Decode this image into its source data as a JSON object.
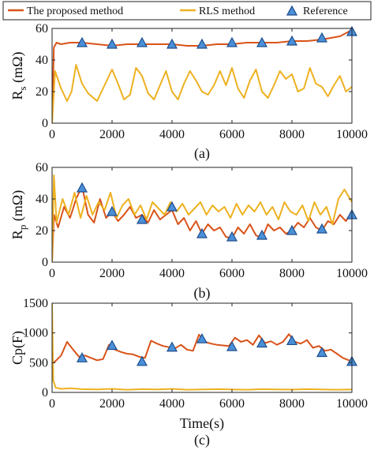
{
  "legend": {
    "placement": "top",
    "entries": [
      {
        "label": "The proposed method",
        "color": "#d95319",
        "marker": "line"
      },
      {
        "label": "RLS method",
        "color": "#edb120",
        "marker": "line"
      },
      {
        "label": "Reference",
        "color": "#4a90d9",
        "marker": "triangle"
      }
    ]
  },
  "chart_data": [
    {
      "type": "line",
      "caption": "(a)",
      "ylabel_main": "R",
      "ylabel_sub": "s",
      "ylabel_unit": " (mΩ)",
      "xlabel": "",
      "xlim": [
        0,
        10000
      ],
      "ylim": [
        0,
        60
      ],
      "xticks": [
        0,
        2000,
        4000,
        6000,
        8000,
        10000
      ],
      "yticks": [
        0,
        20,
        40,
        60
      ],
      "grid": false,
      "series": [
        {
          "name": "The proposed method",
          "color": "#d95319",
          "x": [
            0,
            60,
            150,
            300,
            600,
            1000,
            1500,
            2000,
            2500,
            3000,
            3500,
            4000,
            4500,
            5000,
            5500,
            6000,
            6500,
            7000,
            7500,
            8000,
            8500,
            9000,
            9300,
            9600,
            9800,
            10000
          ],
          "y": [
            0,
            48,
            51,
            50,
            51,
            51,
            50,
            49,
            50,
            50,
            50,
            50,
            49,
            49,
            50,
            50,
            51,
            51,
            51,
            52,
            52,
            53,
            54,
            55,
            57,
            59
          ]
        },
        {
          "name": "RLS method",
          "color": "#edb120",
          "x": [
            0,
            100,
            300,
            500,
            650,
            800,
            1000,
            1200,
            1500,
            1700,
            2000,
            2200,
            2400,
            2600,
            2800,
            3000,
            3200,
            3400,
            3600,
            3800,
            4000,
            4200,
            4400,
            4600,
            4800,
            5000,
            5200,
            5400,
            5600,
            5800,
            6000,
            6200,
            6400,
            6600,
            6800,
            7000,
            7200,
            7400,
            7600,
            7800,
            8000,
            8200,
            8400,
            8600,
            8800,
            9000,
            9200,
            9400,
            9600,
            9800,
            10000
          ],
          "y": [
            0,
            33,
            22,
            14,
            20,
            37,
            25,
            19,
            14,
            22,
            34,
            25,
            15,
            18,
            35,
            30,
            19,
            15,
            24,
            33,
            20,
            15,
            25,
            33,
            27,
            20,
            18,
            24,
            33,
            24,
            35,
            22,
            16,
            27,
            34,
            20,
            16,
            24,
            33,
            28,
            31,
            20,
            22,
            35,
            25,
            23,
            17,
            24,
            30,
            20,
            23
          ]
        },
        {
          "name": "Reference",
          "color": "#4a90d9",
          "marker": "triangle",
          "x": [
            1000,
            2000,
            3000,
            4000,
            5000,
            6000,
            7000,
            8000,
            9000,
            10000
          ],
          "y": [
            51,
            50,
            51,
            50,
            50,
            51,
            51,
            52,
            54,
            58
          ]
        }
      ]
    },
    {
      "type": "line",
      "caption": "(b)",
      "ylabel_main": "R",
      "ylabel_sub": "p",
      "ylabel_unit": " (mΩ)",
      "xlabel": "",
      "xlim": [
        0,
        10000
      ],
      "ylim": [
        0,
        60
      ],
      "xticks": [
        0,
        2000,
        4000,
        6000,
        8000,
        10000
      ],
      "yticks": [
        0,
        20,
        40,
        60
      ],
      "grid": false,
      "series": [
        {
          "name": "The proposed method",
          "color": "#d95319",
          "x": [
            0,
            60,
            200,
            400,
            600,
            800,
            1000,
            1200,
            1400,
            1600,
            1800,
            2000,
            2200,
            2400,
            2600,
            2800,
            3000,
            3200,
            3400,
            3600,
            3800,
            4000,
            4200,
            4400,
            4600,
            4800,
            5000,
            5200,
            5400,
            5600,
            5800,
            6000,
            6200,
            6400,
            6600,
            6800,
            7000,
            7200,
            7400,
            7600,
            7800,
            8000,
            8200,
            8400,
            8600,
            8800,
            9000,
            9200,
            9400,
            9600,
            9800,
            10000
          ],
          "y": [
            0,
            30,
            22,
            35,
            28,
            40,
            48,
            30,
            25,
            40,
            28,
            32,
            26,
            30,
            35,
            28,
            30,
            25,
            33,
            27,
            30,
            33,
            24,
            28,
            20,
            26,
            18,
            24,
            20,
            22,
            16,
            15,
            22,
            18,
            24,
            17,
            15,
            24,
            20,
            22,
            18,
            20,
            25,
            22,
            28,
            22,
            20,
            26,
            24,
            30,
            26,
            32
          ]
        },
        {
          "name": "RLS method",
          "color": "#edb120",
          "x": [
            0,
            60,
            150,
            350,
            550,
            750,
            950,
            1150,
            1350,
            1550,
            1750,
            1950,
            2150,
            2350,
            2550,
            2750,
            2950,
            3150,
            3350,
            3550,
            3750,
            3950,
            4150,
            4350,
            4550,
            4750,
            4950,
            5150,
            5350,
            5550,
            5750,
            5950,
            6150,
            6350,
            6550,
            6750,
            6950,
            7150,
            7350,
            7550,
            7750,
            7950,
            8150,
            8350,
            8550,
            8750,
            8950,
            9150,
            9350,
            9550,
            9750,
            10000
          ],
          "y": [
            0,
            55,
            25,
            40,
            30,
            44,
            28,
            42,
            30,
            38,
            33,
            44,
            28,
            36,
            40,
            30,
            36,
            27,
            38,
            34,
            30,
            38,
            32,
            37,
            30,
            34,
            38,
            30,
            36,
            32,
            35,
            28,
            37,
            30,
            36,
            32,
            38,
            30,
            35,
            27,
            38,
            32,
            30,
            36,
            26,
            38,
            30,
            35,
            24,
            40,
            46,
            38
          ]
        },
        {
          "name": "Reference",
          "color": "#4a90d9",
          "marker": "triangle",
          "x": [
            1000,
            2000,
            3000,
            4000,
            5000,
            6000,
            7000,
            8000,
            9000,
            10000
          ],
          "y": [
            47,
            32,
            27,
            35,
            18,
            16,
            17,
            20,
            21,
            30
          ]
        }
      ]
    },
    {
      "type": "line",
      "caption": "(c)",
      "ylabel_main": "Cp(F)",
      "ylabel_sub": "",
      "ylabel_unit": "",
      "xlabel": "Time(s)",
      "xlim": [
        0,
        10000
      ],
      "ylim": [
        0,
        1500
      ],
      "xticks": [
        0,
        2000,
        4000,
        6000,
        8000,
        10000
      ],
      "yticks": [
        0,
        500,
        1000,
        1500
      ],
      "grid": false,
      "series": [
        {
          "name": "The proposed method",
          "color": "#d95319",
          "x": [
            0,
            100,
            300,
            500,
            700,
            900,
            1100,
            1300,
            1500,
            1700,
            1900,
            2100,
            2300,
            2500,
            2700,
            2900,
            3100,
            3300,
            3500,
            3700,
            3900,
            4100,
            4300,
            4500,
            4700,
            4900,
            5100,
            5300,
            5500,
            5700,
            5900,
            6100,
            6300,
            6500,
            6700,
            6900,
            7100,
            7300,
            7500,
            7700,
            7900,
            8100,
            8300,
            8500,
            8700,
            8900,
            9100,
            9300,
            9500,
            9700,
            10000
          ],
          "y": [
            480,
            520,
            620,
            850,
            720,
            600,
            620,
            580,
            540,
            560,
            800,
            720,
            680,
            650,
            640,
            600,
            580,
            870,
            820,
            780,
            760,
            740,
            800,
            720,
            700,
            970,
            850,
            820,
            800,
            790,
            780,
            920,
            850,
            880,
            800,
            960,
            830,
            860,
            800,
            850,
            980,
            850,
            820,
            880,
            750,
            780,
            700,
            720,
            650,
            580,
            520
          ]
        },
        {
          "name": "RLS method",
          "color": "#edb120",
          "x": [
            0,
            40,
            120,
            300,
            600,
            1000,
            1500,
            2000,
            2500,
            3000,
            3500,
            4000,
            4500,
            5000,
            5500,
            6000,
            6500,
            7000,
            7500,
            8000,
            8500,
            9000,
            9500,
            10000
          ],
          "y": [
            1500,
            200,
            80,
            60,
            70,
            55,
            50,
            60,
            45,
            55,
            50,
            60,
            45,
            50,
            55,
            50,
            45,
            55,
            50,
            48,
            55,
            50,
            45,
            50
          ]
        },
        {
          "name": "Reference",
          "color": "#4a90d9",
          "marker": "triangle",
          "x": [
            1000,
            2000,
            3000,
            4000,
            5000,
            6000,
            7000,
            8000,
            9000,
            10000
          ],
          "y": [
            580,
            790,
            520,
            760,
            900,
            770,
            830,
            870,
            670,
            520
          ]
        }
      ]
    }
  ]
}
